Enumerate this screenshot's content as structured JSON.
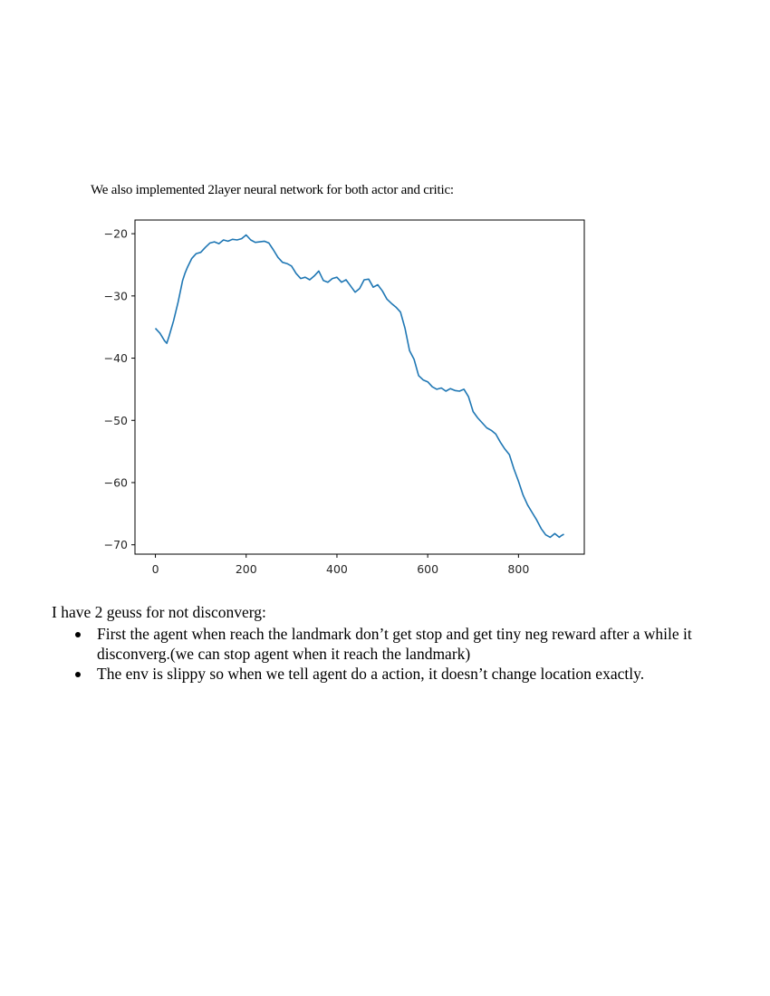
{
  "intro_text": "We also implemented 2layer neural network for both actor and critic:",
  "chart_data": {
    "type": "line",
    "title": "",
    "xlabel": "",
    "ylabel": "",
    "xlim": [
      -45,
      945
    ],
    "ylim": [
      -71.5,
      -17.8
    ],
    "x_ticks": [
      "0",
      "200",
      "400",
      "600",
      "800"
    ],
    "y_ticks": [
      "−20",
      "−30",
      "−40",
      "−50",
      "−60",
      "−70"
    ],
    "grid": false,
    "line_color": "#1f77b4",
    "series": [
      {
        "x": [
          0,
          10,
          20,
          25,
          30,
          40,
          50,
          60,
          65,
          70,
          80,
          90,
          100,
          110,
          120,
          130,
          140,
          150,
          160,
          170,
          180,
          190,
          200,
          210,
          220,
          230,
          240,
          250,
          260,
          270,
          280,
          290,
          300,
          310,
          320,
          330,
          340,
          350,
          360,
          370,
          380,
          390,
          400,
          410,
          420,
          430,
          440,
          450,
          460,
          470,
          480,
          490,
          500,
          510,
          520,
          530,
          540,
          550,
          560,
          570,
          580,
          590,
          600,
          610,
          620,
          630,
          640,
          650,
          660,
          670,
          680,
          690,
          700,
          710,
          720,
          730,
          740,
          750,
          760,
          770,
          780,
          790,
          800,
          810,
          820,
          830,
          840,
          850,
          860,
          870,
          880,
          890,
          895,
          900
        ],
        "y": [
          -35.2,
          -36.0,
          -37.2,
          -37.6,
          -36.5,
          -34.0,
          -31.0,
          -27.5,
          -26.4,
          -25.5,
          -24.0,
          -23.2,
          -23.0,
          -22.2,
          -21.5,
          -21.3,
          -21.6,
          -21.0,
          -21.2,
          -20.9,
          -21.0,
          -20.8,
          -20.2,
          -21.0,
          -21.4,
          -21.3,
          -21.2,
          -21.5,
          -22.6,
          -23.8,
          -24.6,
          -24.8,
          -25.2,
          -26.4,
          -27.2,
          -27.0,
          -27.4,
          -26.8,
          -26.0,
          -27.5,
          -27.8,
          -27.2,
          -27.0,
          -27.8,
          -27.4,
          -28.4,
          -29.4,
          -28.8,
          -27.4,
          -27.3,
          -28.6,
          -28.2,
          -29.2,
          -30.5,
          -31.2,
          -31.8,
          -32.6,
          -35.2,
          -38.8,
          -40.2,
          -42.8,
          -43.5,
          -43.8,
          -44.6,
          -45.0,
          -44.8,
          -45.3,
          -44.9,
          -45.2,
          -45.3,
          -45.0,
          -46.2,
          -48.6,
          -49.6,
          -50.4,
          -51.2,
          -51.6,
          -52.2,
          -53.5,
          -54.6,
          -55.5,
          -57.8,
          -59.8,
          -62.0,
          -63.6,
          -64.8,
          -66.0,
          -67.4,
          -68.4,
          -68.8,
          -68.2,
          -68.8,
          -68.5,
          -68.3
        ]
      }
    ]
  },
  "guesses_heading": "I have 2 geuss  for  not  disconverg:",
  "bullets": [
    "First the agent when reach the landmark don’t get stop and get tiny neg reward after a while it disconverg.(we can stop agent when it reach the landmark)",
    "The env is slippy so when we tell agent do a action, it doesn’t change location exactly."
  ]
}
